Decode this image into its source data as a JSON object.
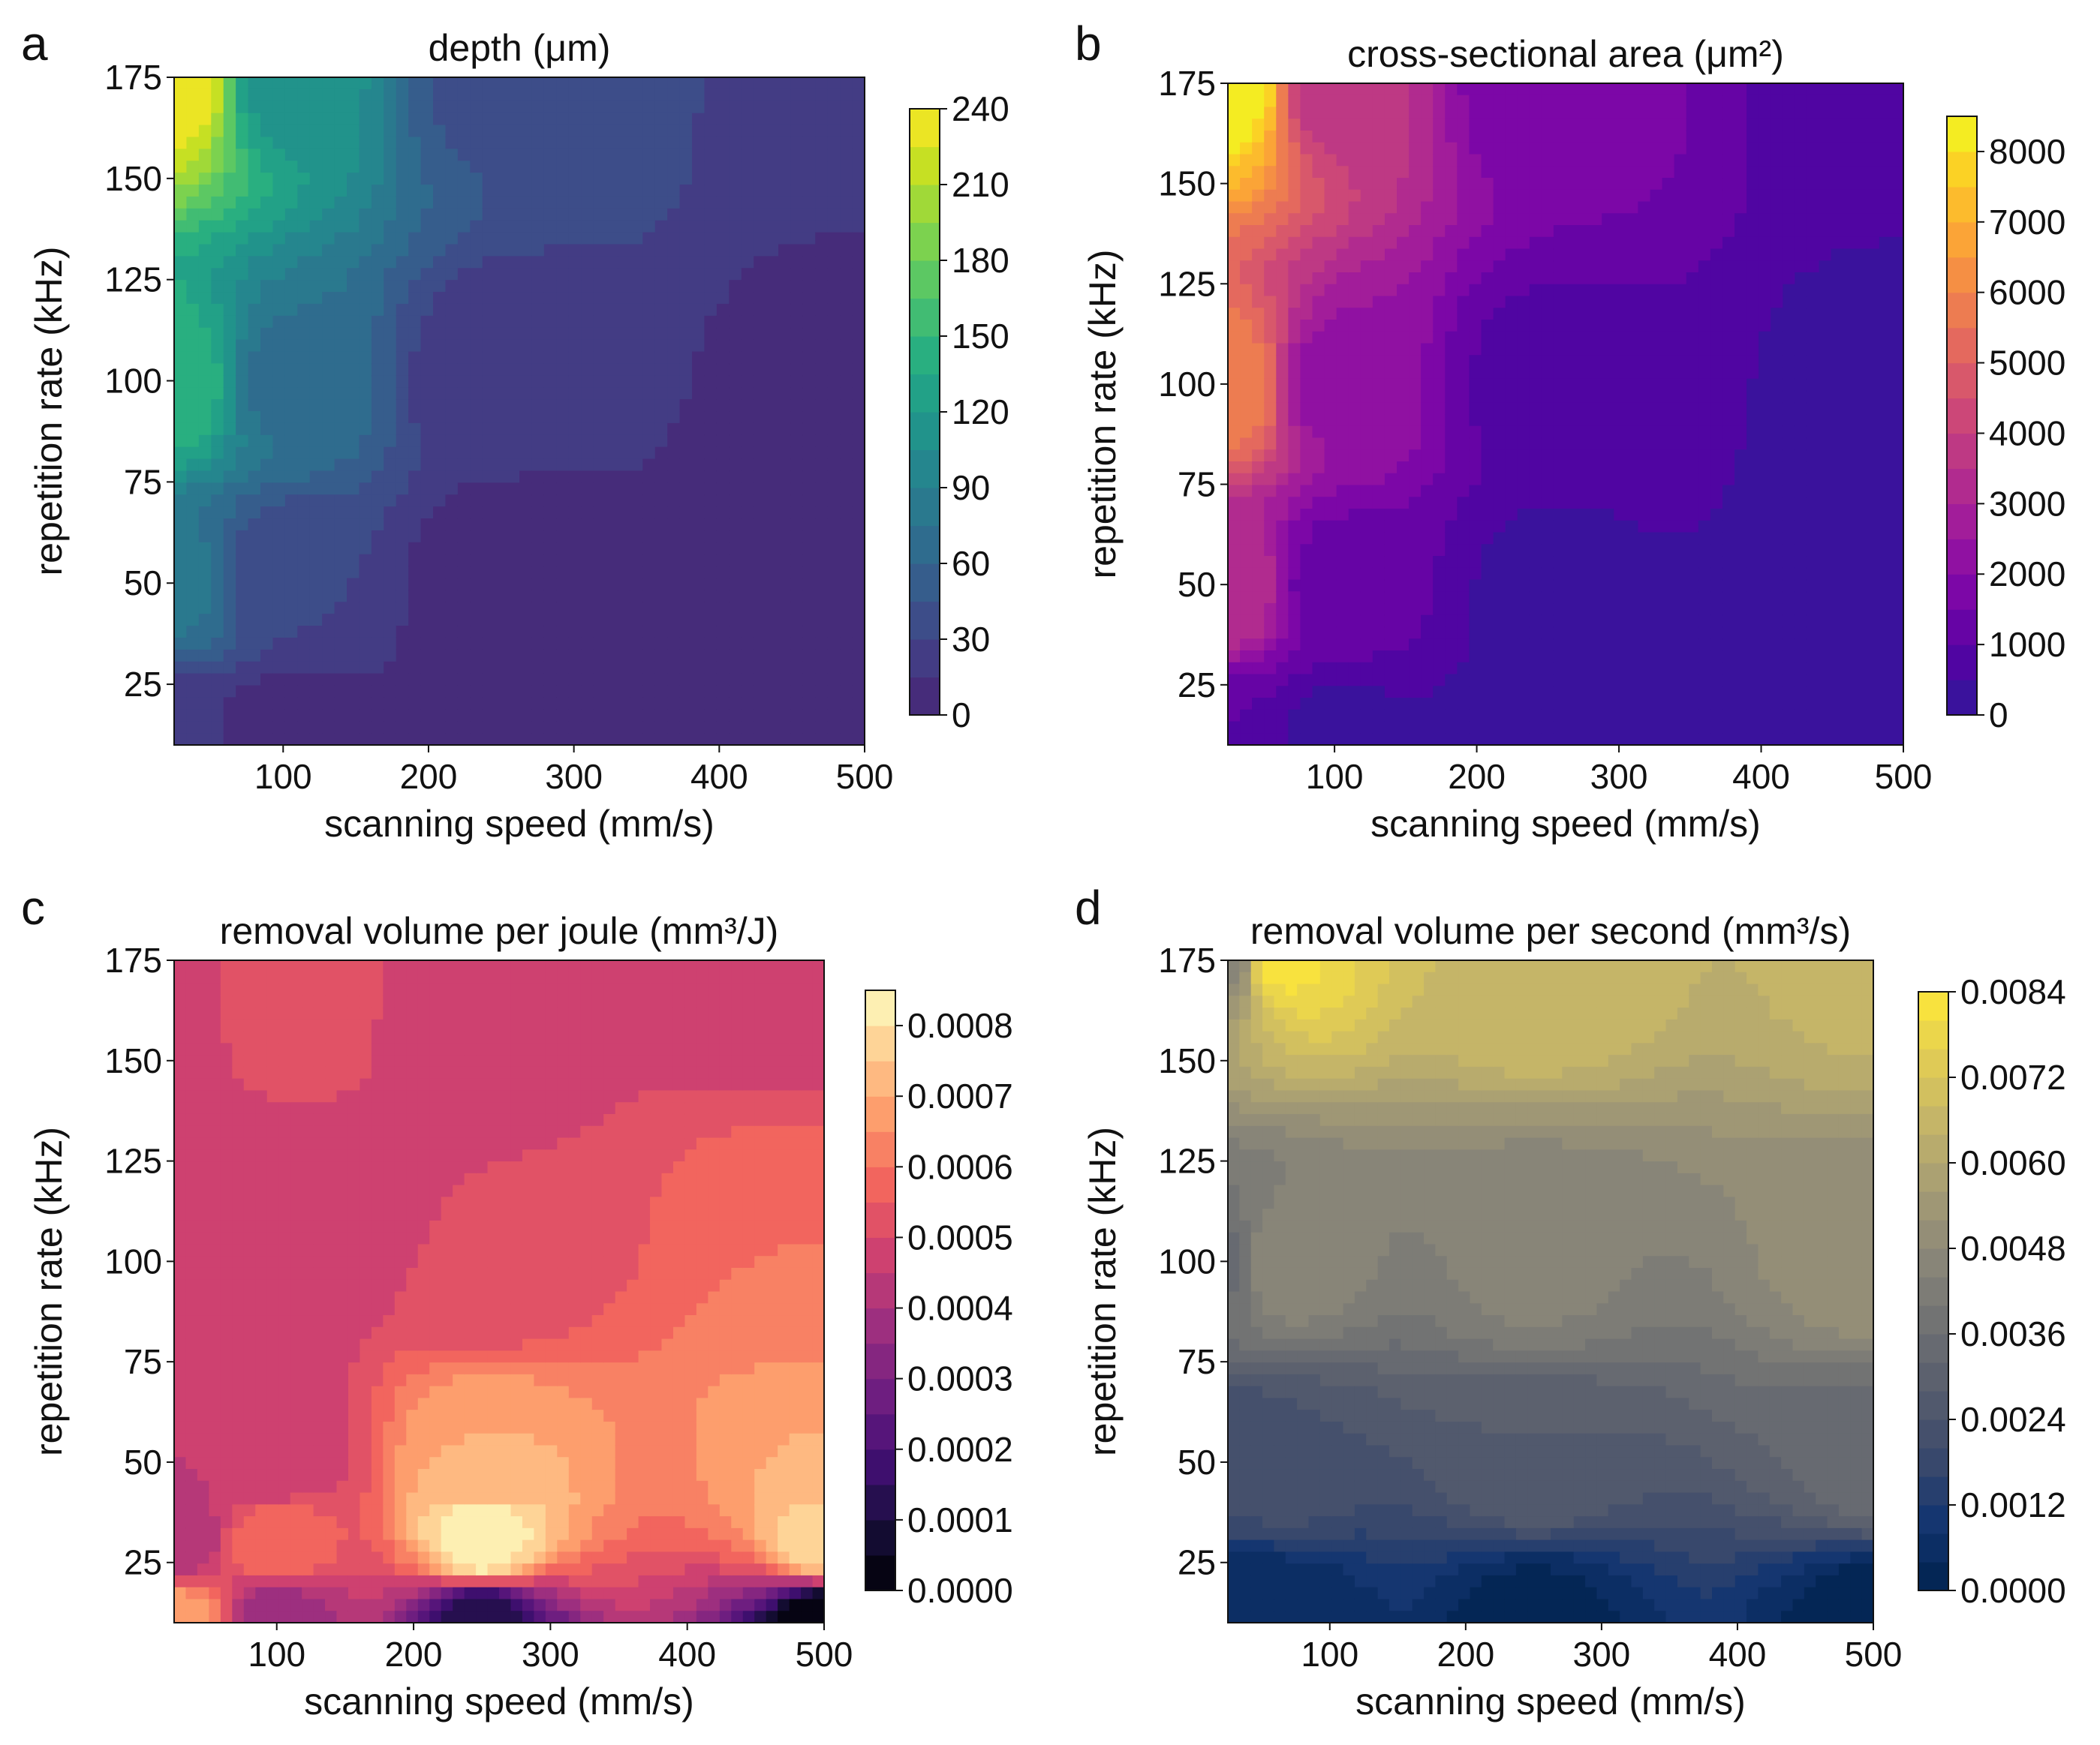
{
  "chart_data": [
    {
      "type": "heatmap",
      "subtype": "filled-contour",
      "panel_label": "a",
      "title": "depth (μm)",
      "xlabel": "scanning speed (mm/s)",
      "ylabel": "repetition rate (kHz)",
      "xlim": [
        25,
        500
      ],
      "ylim": [
        10,
        175
      ],
      "xticks": [
        "100",
        "200",
        "300",
        "400",
        "500"
      ],
      "yticks": [
        "25",
        "50",
        "75",
        "100",
        "125",
        "150",
        "175"
      ],
      "colorbar": {
        "colormap": "viridis",
        "ticks": [
          "0",
          "30",
          "60",
          "90",
          "120",
          "150",
          "180",
          "210",
          "240"
        ],
        "range": [
          0,
          240
        ],
        "levels": 16,
        "colors": [
          "#482475",
          "#433e85",
          "#38588c",
          "#2d708e",
          "#25858e",
          "#1f9a8a",
          "#2ab07f",
          "#52c569",
          "#86d549",
          "#c2df23",
          "#fde725"
        ]
      },
      "points": [
        {
          "x": 25,
          "y": 175,
          "value": 240
        },
        {
          "x": 100,
          "y": 175,
          "value": 110
        },
        {
          "x": 250,
          "y": 175,
          "value": 40
        },
        {
          "x": 500,
          "y": 175,
          "value": 22
        },
        {
          "x": 25,
          "y": 100,
          "value": 150
        },
        {
          "x": 100,
          "y": 100,
          "value": 70
        },
        {
          "x": 250,
          "y": 100,
          "value": 18
        },
        {
          "x": 500,
          "y": 100,
          "value": 8
        },
        {
          "x": 25,
          "y": 50,
          "value": 80
        },
        {
          "x": 100,
          "y": 50,
          "value": 30
        },
        {
          "x": 250,
          "y": 50,
          "value": 6
        },
        {
          "x": 500,
          "y": 50,
          "value": 2
        },
        {
          "x": 25,
          "y": 10,
          "value": 20
        },
        {
          "x": 100,
          "y": 10,
          "value": 3
        },
        {
          "x": 250,
          "y": 10,
          "value": 1
        },
        {
          "x": 500,
          "y": 10,
          "value": 0
        }
      ]
    },
    {
      "type": "heatmap",
      "subtype": "filled-contour",
      "panel_label": "b",
      "title": "cross-sectional area (μm²)",
      "xlabel": "scanning speed (mm/s)",
      "ylabel": "repetition rate (kHz)",
      "xlim": [
        25,
        500
      ],
      "ylim": [
        10,
        175
      ],
      "xticks": [
        "100",
        "200",
        "300",
        "400",
        "500"
      ],
      "yticks": [
        "25",
        "50",
        "75",
        "100",
        "125",
        "150",
        "175"
      ],
      "colorbar": {
        "colormap": "plasma",
        "ticks": [
          "0",
          "1000",
          "2000",
          "3000",
          "4000",
          "5000",
          "6000",
          "7000",
          "8000"
        ],
        "range": [
          0,
          8500
        ],
        "levels": 17,
        "colors": [
          "#2f1999",
          "#5402a3",
          "#7a06a8",
          "#9c179e",
          "#b52f8c",
          "#cc4778",
          "#e16462",
          "#f1834c",
          "#fca636",
          "#fccd25",
          "#f0f921"
        ]
      },
      "points": [
        {
          "x": 25,
          "y": 175,
          "value": 8500
        },
        {
          "x": 100,
          "y": 175,
          "value": 3500
        },
        {
          "x": 250,
          "y": 175,
          "value": 1600
        },
        {
          "x": 500,
          "y": 175,
          "value": 700
        },
        {
          "x": 25,
          "y": 100,
          "value": 6000
        },
        {
          "x": 100,
          "y": 100,
          "value": 2200
        },
        {
          "x": 250,
          "y": 100,
          "value": 800
        },
        {
          "x": 500,
          "y": 100,
          "value": 300
        },
        {
          "x": 25,
          "y": 50,
          "value": 3500
        },
        {
          "x": 100,
          "y": 50,
          "value": 1200
        },
        {
          "x": 250,
          "y": 50,
          "value": 400
        },
        {
          "x": 500,
          "y": 50,
          "value": 100
        },
        {
          "x": 25,
          "y": 10,
          "value": 1000
        },
        {
          "x": 100,
          "y": 10,
          "value": 300
        },
        {
          "x": 250,
          "y": 10,
          "value": 100
        },
        {
          "x": 500,
          "y": 10,
          "value": 0
        }
      ]
    },
    {
      "type": "heatmap",
      "subtype": "filled-contour",
      "panel_label": "c",
      "title": "removal volume per joule (mm³/J)",
      "xlabel": "scanning speed (mm/s)",
      "ylabel": "repetition rate (kHz)",
      "xlim": [
        25,
        500
      ],
      "ylim": [
        10,
        175
      ],
      "xticks": [
        "100",
        "200",
        "300",
        "400",
        "500"
      ],
      "yticks": [
        "25",
        "50",
        "75",
        "100",
        "125",
        "150",
        "175"
      ],
      "colorbar": {
        "colormap": "magma",
        "ticks": [
          "0.0000",
          "0.0001",
          "0.0002",
          "0.0003",
          "0.0004",
          "0.0005",
          "0.0006",
          "0.0007",
          "0.0008"
        ],
        "range": [
          0,
          0.00085
        ],
        "levels": 17,
        "colors": [
          "#000004",
          "#180f3d",
          "#440f76",
          "#721f81",
          "#9e2f7f",
          "#cd4071",
          "#f1605d",
          "#fd9668",
          "#feca8d",
          "#fcfdbf"
        ]
      },
      "points": [
        {
          "x": 25,
          "y": 175,
          "value": 0.00045
        },
        {
          "x": 100,
          "y": 175,
          "value": 0.00055
        },
        {
          "x": 250,
          "y": 175,
          "value": 0.00045
        },
        {
          "x": 500,
          "y": 175,
          "value": 0.00045
        },
        {
          "x": 25,
          "y": 100,
          "value": 0.0005
        },
        {
          "x": 100,
          "y": 100,
          "value": 0.00045
        },
        {
          "x": 250,
          "y": 100,
          "value": 0.0005
        },
        {
          "x": 500,
          "y": 100,
          "value": 0.0006
        },
        {
          "x": 25,
          "y": 50,
          "value": 0.00045
        },
        {
          "x": 100,
          "y": 50,
          "value": 0.00045
        },
        {
          "x": 250,
          "y": 50,
          "value": 0.0007
        },
        {
          "x": 500,
          "y": 50,
          "value": 0.0007
        },
        {
          "x": 25,
          "y": 30,
          "value": 0.0004
        },
        {
          "x": 100,
          "y": 30,
          "value": 0.0006
        },
        {
          "x": 250,
          "y": 30,
          "value": 0.00085
        },
        {
          "x": 500,
          "y": 30,
          "value": 0.0008
        },
        {
          "x": 25,
          "y": 10,
          "value": 0.0007
        },
        {
          "x": 100,
          "y": 10,
          "value": 0.00035
        },
        {
          "x": 250,
          "y": 10,
          "value": 0.0001
        },
        {
          "x": 500,
          "y": 10,
          "value": 0.0
        }
      ]
    },
    {
      "type": "heatmap",
      "subtype": "filled-contour",
      "panel_label": "d",
      "title": "removal volume per second (mm³/s)",
      "xlabel": "scanning speed (mm/s)",
      "ylabel": "repetition rate (kHz)",
      "xlim": [
        25,
        500
      ],
      "ylim": [
        10,
        175
      ],
      "xticks": [
        "100",
        "200",
        "300",
        "400",
        "500"
      ],
      "yticks": [
        "25",
        "50",
        "75",
        "100",
        "125",
        "150",
        "175"
      ],
      "colorbar": {
        "colormap": "cividis",
        "ticks": [
          "0.0000",
          "0.0012",
          "0.0024",
          "0.0036",
          "0.0048",
          "0.0060",
          "0.0072",
          "0.0084"
        ],
        "range": [
          0,
          0.0084
        ],
        "levels": 21,
        "colors": [
          "#00224e",
          "#123570",
          "#3b496c",
          "#575d6d",
          "#707173",
          "#8a8678",
          "#a59c74",
          "#c3b369",
          "#e1cc55",
          "#fee838"
        ]
      },
      "points": [
        {
          "x": 25,
          "y": 175,
          "value": 0.0045
        },
        {
          "x": 60,
          "y": 175,
          "value": 0.0082
        },
        {
          "x": 250,
          "y": 175,
          "value": 0.0068
        },
        {
          "x": 500,
          "y": 175,
          "value": 0.0065
        },
        {
          "x": 25,
          "y": 100,
          "value": 0.0035
        },
        {
          "x": 60,
          "y": 100,
          "value": 0.0048
        },
        {
          "x": 250,
          "y": 100,
          "value": 0.0045
        },
        {
          "x": 500,
          "y": 100,
          "value": 0.005
        },
        {
          "x": 25,
          "y": 50,
          "value": 0.002
        },
        {
          "x": 60,
          "y": 50,
          "value": 0.0024
        },
        {
          "x": 250,
          "y": 50,
          "value": 0.0028
        },
        {
          "x": 500,
          "y": 50,
          "value": 0.0034
        },
        {
          "x": 25,
          "y": 10,
          "value": 0.0004
        },
        {
          "x": 60,
          "y": 10,
          "value": 0.0004
        },
        {
          "x": 250,
          "y": 10,
          "value": 0.0002
        },
        {
          "x": 500,
          "y": 10,
          "value": 0.0001
        }
      ]
    }
  ]
}
